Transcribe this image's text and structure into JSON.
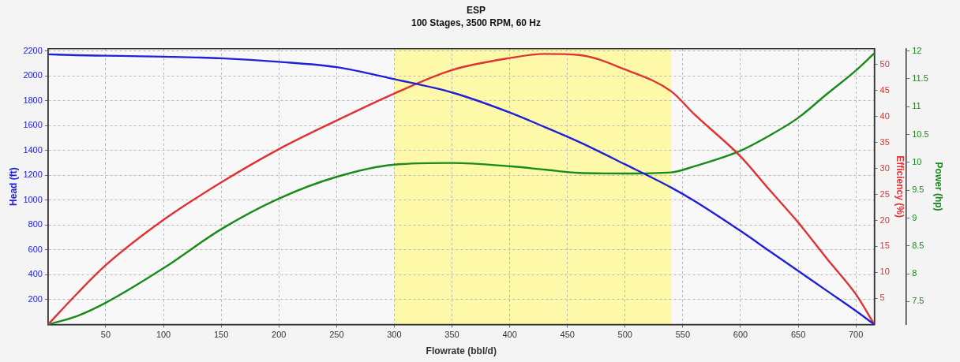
{
  "chart_data": {
    "type": "line",
    "title": "ESP",
    "subtitle": "100 Stages, 3500 RPM, 60 Hz",
    "xlabel": "Flowrate (bbl/d)",
    "ylabel": "Head (ft)",
    "y2label": "Efficiency (%)",
    "y3label": "Power (hp)",
    "x": [
      0,
      25,
      50,
      100,
      150,
      200,
      250,
      300,
      350,
      400,
      430,
      460,
      500,
      540,
      560,
      600,
      625,
      650,
      675,
      700,
      716
    ],
    "series": [
      {
        "color": "#2020d8",
        "values": [
          2175,
          2168,
          2164,
          2156,
          2143,
          2115,
          2072,
          1975,
          1868,
          1707,
          1591,
          1470,
          1289,
          1102,
          995,
          753,
          592,
          431,
          270,
          109,
          0
        ]
      },
      {
        "color": "#e03232",
        "axis": "y2",
        "values": [
          0,
          5.9,
          11.4,
          20.1,
          27.3,
          33.7,
          39.2,
          44.4,
          48.9,
          51.2,
          52.0,
          51.8,
          49.0,
          44.8,
          40.4,
          32.3,
          25.9,
          19.6,
          12.6,
          5.8,
          0
        ]
      },
      {
        "color": "#1a8a1a",
        "axis": "y3",
        "values": [
          7.09,
          7.24,
          7.48,
          8.1,
          8.8,
          9.35,
          9.74,
          9.96,
          9.99,
          9.93,
          9.87,
          9.81,
          9.8,
          9.82,
          9.93,
          10.21,
          10.48,
          10.8,
          11.23,
          11.65,
          11.96
        ]
      }
    ],
    "xlim": [
      0,
      716
    ],
    "xticks": [
      50,
      100,
      150,
      200,
      250,
      300,
      350,
      400,
      450,
      500,
      550,
      600,
      650,
      700
    ],
    "ylim": [
      0,
      2220
    ],
    "yticks": [
      200,
      400,
      600,
      800,
      1000,
      1200,
      1400,
      1600,
      1800,
      2000,
      2200
    ],
    "y2lim": [
      0,
      53
    ],
    "y2ticks": [
      5,
      10,
      15,
      20,
      25,
      30,
      35,
      40,
      45,
      50
    ],
    "y3lim": [
      7.09,
      12.04
    ],
    "y3ticks": [
      7.5,
      8,
      8.5,
      9,
      9.5,
      10,
      10.5,
      11,
      11.5,
      12
    ],
    "bands": [
      {
        "axis": "x",
        "from": 300,
        "to": 540,
        "color": "#fdf9a8"
      }
    ],
    "grid": true,
    "marker": "none"
  }
}
